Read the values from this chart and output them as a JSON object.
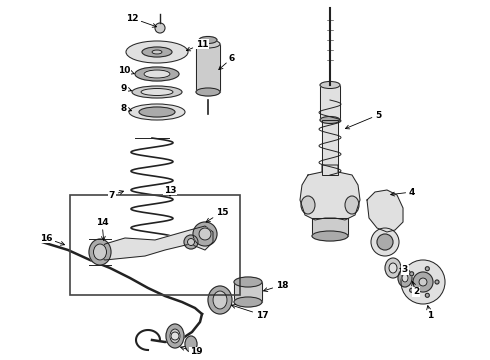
{
  "background_color": "#ffffff",
  "line_color": "#222222",
  "fig_width": 4.9,
  "fig_height": 3.6,
  "dpi": 100,
  "lw": 0.7,
  "gray_dark": "#888888",
  "gray_mid": "#aaaaaa",
  "gray_light": "#cccccc",
  "gray_lighter": "#e0e0e0"
}
